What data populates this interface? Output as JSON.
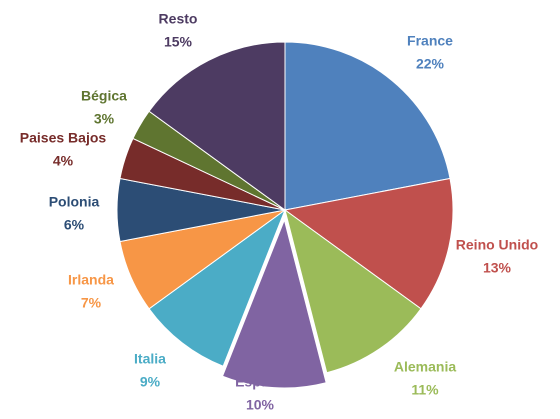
{
  "chart_data": {
    "type": "pie",
    "categories": [
      "France",
      "Reino Unido",
      "Alemania",
      "Espana",
      "Italia",
      "Irlanda",
      "Polonia",
      "Paises Bajos",
      "Bégica",
      "Resto"
    ],
    "values": [
      22,
      13,
      11,
      10,
      9,
      7,
      6,
      4,
      3,
      15
    ],
    "value_labels": [
      "22%",
      "13%",
      "11%",
      "10%",
      "9%",
      "7%",
      "6%",
      "4%",
      "3%",
      "15%"
    ],
    "colors": [
      "#4f81bd",
      "#c0504d",
      "#9bbb59",
      "#8064a2",
      "#4bacc6",
      "#f79646",
      "#2c4d75",
      "#772c2a",
      "#5f7530",
      "#4d3b62"
    ],
    "exploded": [
      "Espana"
    ]
  }
}
